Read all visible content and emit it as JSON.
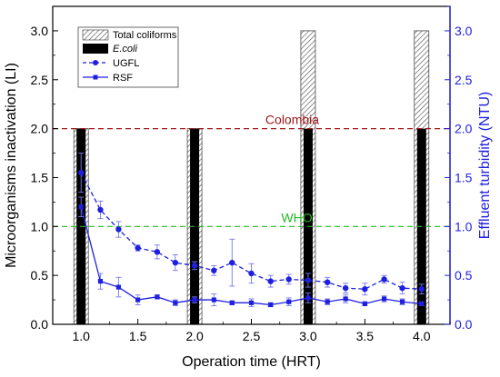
{
  "chart_data": {
    "type": "bar",
    "x": [
      1.0,
      2.0,
      3.0,
      4.0
    ],
    "xlabel": "Operation time (HRT)",
    "ylabel_left": "Microorganisms inactivation (LI)",
    "ylabel_right": "Effluent turbidity (NTU)",
    "xlim": [
      0.75,
      4.25
    ],
    "ylim_left": [
      0,
      3.25
    ],
    "ylim_right": [
      0,
      3.25
    ],
    "xticks": [
      "1.0",
      "1.5",
      "2.0",
      "2.5",
      "3.0",
      "3.5",
      "4.0"
    ],
    "yticks_left": [
      "0.0",
      "0.5",
      "1.0",
      "1.5",
      "2.0",
      "2.5",
      "3.0"
    ],
    "yticks_right": [
      "0.0",
      "0.5",
      "1.0",
      "1.5",
      "2.0",
      "2.5",
      "3.0"
    ],
    "bar_series": [
      {
        "name": "Total coliforms",
        "values": [
          2.0,
          2.0,
          3.0,
          3.0
        ],
        "pattern": "hatched"
      },
      {
        "name": "E.coli",
        "values": [
          2.0,
          2.0,
          2.0,
          2.0
        ],
        "pattern": "solid"
      }
    ],
    "line_series": [
      {
        "name": "UGFL",
        "style": "dashed-circle",
        "points": [
          {
            "x": 1.0,
            "y": 1.55,
            "err": 0.2
          },
          {
            "x": 1.17,
            "y": 1.17,
            "err": 0.09
          },
          {
            "x": 1.33,
            "y": 0.97,
            "err": 0.08
          },
          {
            "x": 1.5,
            "y": 0.78,
            "err": 0.03
          },
          {
            "x": 1.67,
            "y": 0.74,
            "err": 0.07
          },
          {
            "x": 1.83,
            "y": 0.63,
            "err": 0.08
          },
          {
            "x": 2.0,
            "y": 0.6,
            "err": 0.04
          },
          {
            "x": 2.17,
            "y": 0.55,
            "err": 0.05
          },
          {
            "x": 2.33,
            "y": 0.63,
            "err": 0.24
          },
          {
            "x": 2.5,
            "y": 0.52,
            "err": 0.1
          },
          {
            "x": 2.67,
            "y": 0.44,
            "err": 0.06
          },
          {
            "x": 2.83,
            "y": 0.46,
            "err": 0.05
          },
          {
            "x": 3.0,
            "y": 0.45,
            "err": 0.07
          },
          {
            "x": 3.17,
            "y": 0.43,
            "err": 0.05
          },
          {
            "x": 3.33,
            "y": 0.37,
            "err": 0.05
          },
          {
            "x": 3.5,
            "y": 0.36,
            "err": 0.06
          },
          {
            "x": 3.67,
            "y": 0.46,
            "err": 0.04
          },
          {
            "x": 3.83,
            "y": 0.37,
            "err": 0.06
          },
          {
            "x": 4.0,
            "y": 0.36,
            "err": 0.05
          }
        ]
      },
      {
        "name": "RSF",
        "style": "solid-square",
        "points": [
          {
            "x": 1.0,
            "y": 1.2,
            "err": 0.1
          },
          {
            "x": 1.17,
            "y": 0.44,
            "err": 0.08
          },
          {
            "x": 1.33,
            "y": 0.38,
            "err": 0.1
          },
          {
            "x": 1.5,
            "y": 0.25,
            "err": 0.05
          },
          {
            "x": 1.67,
            "y": 0.28,
            "err": 0.02
          },
          {
            "x": 1.83,
            "y": 0.22,
            "err": 0.03
          },
          {
            "x": 2.0,
            "y": 0.25,
            "err": 0.03
          },
          {
            "x": 2.17,
            "y": 0.25,
            "err": 0.06
          },
          {
            "x": 2.33,
            "y": 0.22,
            "err": 0.02
          },
          {
            "x": 2.5,
            "y": 0.22,
            "err": 0.04
          },
          {
            "x": 2.67,
            "y": 0.2,
            "err": 0.02
          },
          {
            "x": 2.83,
            "y": 0.23,
            "err": 0.04
          },
          {
            "x": 3.0,
            "y": 0.27,
            "err": 0.05
          },
          {
            "x": 3.17,
            "y": 0.23,
            "err": 0.03
          },
          {
            "x": 3.33,
            "y": 0.26,
            "err": 0.04
          },
          {
            "x": 3.5,
            "y": 0.21,
            "err": 0.02
          },
          {
            "x": 3.67,
            "y": 0.26,
            "err": 0.03
          },
          {
            "x": 3.83,
            "y": 0.23,
            "err": 0.03
          },
          {
            "x": 4.0,
            "y": 0.21,
            "err": 0.02
          }
        ]
      }
    ],
    "reference_lines": [
      {
        "label": "Colombia",
        "y": 2.0,
        "color": "#a01818"
      },
      {
        "label": "WHO",
        "y": 1.0,
        "color": "#22bb22"
      }
    ],
    "legend": [
      "Total coliforms",
      "E.coli",
      "UGFL",
      "RSF"
    ],
    "legend_position": "top-left",
    "grid": false,
    "colors": {
      "line_series": "#1f1fe0",
      "right_axis": "#1f1fe0",
      "bars": "#000000"
    }
  }
}
